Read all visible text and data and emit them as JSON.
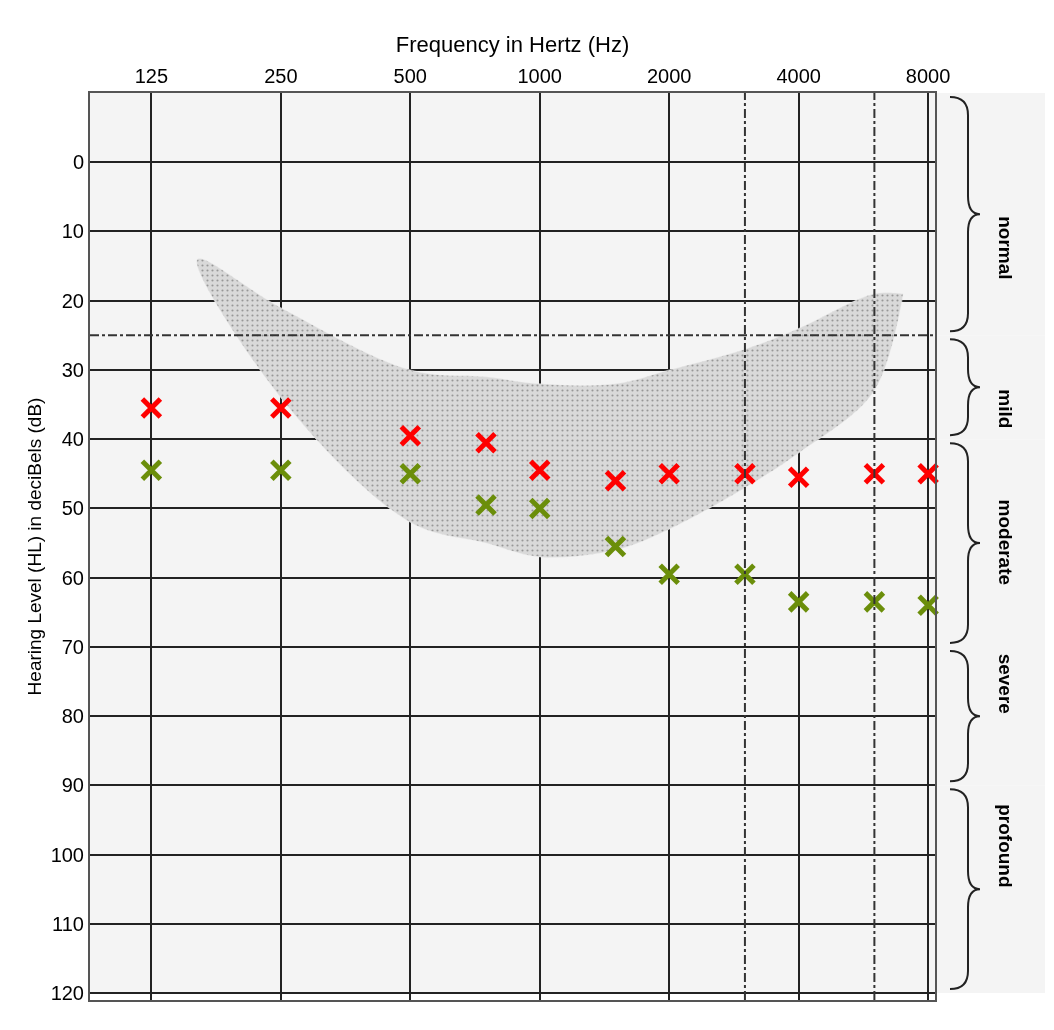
{
  "chart_data": {
    "type": "scatter",
    "xlabel": "Frequency in Hertz (Hz)",
    "ylabel": "Hearing Level (HL) in deciBels (dB)",
    "x": [
      125,
      250,
      500,
      750,
      1000,
      1500,
      2000,
      3000,
      4000,
      6000,
      8000
    ],
    "series": [
      {
        "color": "#ff0000",
        "values": [
          35.5,
          35.5,
          39.5,
          40.5,
          44.5,
          46,
          45,
          45,
          45.5,
          45,
          45
        ]
      },
      {
        "color": "#6b8e0a",
        "values": [
          44.5,
          44.5,
          45,
          49.5,
          50,
          55.5,
          59.5,
          59.5,
          63.5,
          63.5,
          64
        ]
      },
      {
        "type": "area",
        "color": "#d9d9d9",
        "x": [
          160,
          250,
          500,
          750,
          1000,
          1500,
          2000,
          3000,
          4000,
          6000,
          7000
        ],
        "values": [
          null,
          null,
          null,
          null,
          null,
          null,
          null,
          null,
          null,
          null,
          null
        ],
        "lower": [
          14,
          21,
          30,
          31,
          32,
          32,
          30,
          27,
          24,
          19,
          19
        ],
        "upper": [
          14,
          34,
          52,
          55,
          57,
          56,
          53,
          47,
          42,
          33,
          19
        ]
      }
    ],
    "marker": "cross",
    "log": "x",
    "xlim": [
      90,
      8300
    ],
    "xticks": [
      125,
      250,
      500,
      1000,
      2000,
      4000,
      8000
    ],
    "ylim": [
      121,
      -10
    ],
    "yticks": [
      0,
      10,
      20,
      30,
      40,
      50,
      60,
      70,
      80,
      90,
      100,
      110,
      120
    ],
    "grid": true,
    "ref_lines": [
      {
        "axis": "y",
        "value": 25,
        "line_style": "dashdot"
      },
      {
        "axis": "x",
        "value": 3000,
        "line_style": "dashdot"
      },
      {
        "axis": "x",
        "value": 6000,
        "line_style": "dashdot"
      }
    ],
    "bands": [
      {
        "axis": "y",
        "from": -10,
        "to": 25,
        "label": "normal",
        "color": "#f4f4f4"
      },
      {
        "axis": "y",
        "from": 25,
        "to": 40,
        "label": "mild",
        "color": "#f4f4f4"
      },
      {
        "axis": "y",
        "from": 40,
        "to": 70,
        "label": "moderate",
        "color": "#f4f4f4"
      },
      {
        "axis": "y",
        "from": 70,
        "to": 90,
        "label": "severe",
        "color": "#f4f4f4"
      },
      {
        "axis": "y",
        "from": 90,
        "to": 120,
        "label": "profound",
        "color": "#f4f4f4"
      }
    ]
  }
}
